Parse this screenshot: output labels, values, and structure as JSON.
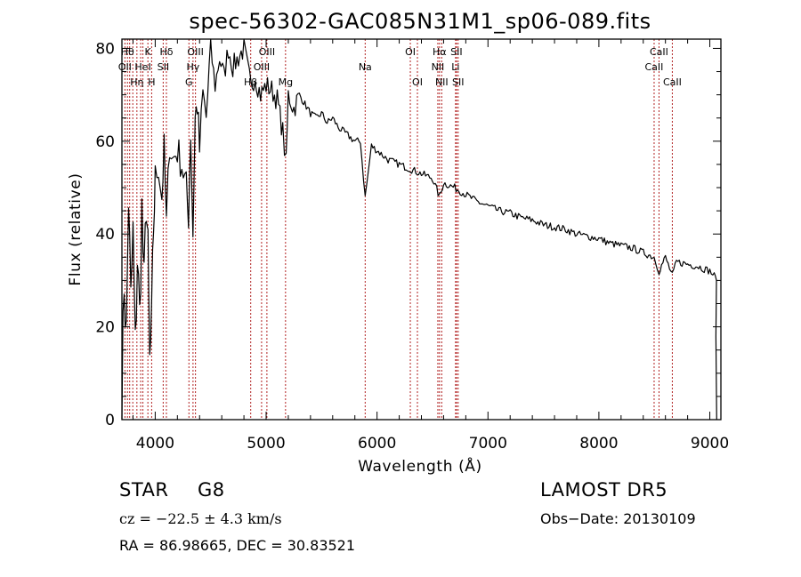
{
  "chart_data": {
    "type": "line",
    "title": "spec-56302-GAC085N31M1_sp06-089.fits",
    "xlabel": "Wavelength (Å)",
    "ylabel": "Flux (relative)",
    "xlim": [
      3700,
      9100
    ],
    "ylim": [
      0,
      82
    ],
    "xticks": [
      4000,
      5000,
      6000,
      7000,
      8000,
      9000
    ],
    "yticks": [
      0,
      20,
      40,
      60,
      80
    ],
    "grid": false,
    "series": [
      {
        "x": [
          3700,
          3720,
          3740,
          3760,
          3780,
          3800,
          3820,
          3840,
          3860,
          3880,
          3900,
          3920,
          3935,
          3950,
          3968,
          3985,
          4000,
          4030,
          4060,
          4080,
          4101,
          4130,
          4160,
          4200,
          4240,
          4280,
          4300,
          4320,
          4340,
          4360,
          4380,
          4400,
          4430,
          4460,
          4500,
          4540,
          4580,
          4620,
          4660,
          4700,
          4750,
          4800,
          4861,
          4900,
          4950,
          5000,
          5050,
          5100,
          5150,
          5180,
          5200,
          5250,
          5300,
          5350,
          5400,
          5450,
          5500,
          5550,
          5600,
          5650,
          5700,
          5750,
          5800,
          5850,
          5893,
          5950,
          6000,
          6100,
          6200,
          6300,
          6400,
          6500,
          6563,
          6600,
          6700,
          6800,
          6900,
          7000,
          7100,
          7200,
          7300,
          7400,
          7500,
          7600,
          7700,
          7800,
          7900,
          8000,
          8100,
          8200,
          8300,
          8400,
          8498,
          8542,
          8600,
          8662,
          8700,
          8800,
          8900,
          9000,
          9040,
          9060
        ],
        "y": [
          5,
          30,
          18,
          48,
          25,
          40,
          15,
          35,
          22,
          45,
          28,
          48,
          35,
          12,
          20,
          42,
          52,
          55,
          48,
          58,
          42,
          60,
          56,
          58,
          55,
          50,
          44,
          62,
          40,
          65,
          68,
          58,
          70,
          65,
          80,
          72,
          78,
          74,
          80,
          76,
          78,
          80,
          72,
          74,
          70,
          72,
          71,
          69,
          62,
          55,
          70,
          67,
          70,
          68,
          66,
          65,
          66,
          64,
          65,
          63,
          62,
          61,
          60,
          60,
          48,
          59,
          58,
          56,
          55,
          54,
          53,
          52,
          48,
          51,
          50,
          48.5,
          47,
          46,
          45,
          44.5,
          43.5,
          43,
          42,
          41.5,
          41,
          40,
          39.5,
          39,
          38,
          37.5,
          37,
          36,
          35,
          32,
          35,
          31,
          34,
          33.5,
          33,
          32,
          31,
          30
        ]
      }
    ],
    "lines": [
      {
        "x": 3727,
        "label": "OII",
        "row": 2
      },
      {
        "x": 3750,
        "label": "Hθ",
        "row": 1
      },
      {
        "x": 3770,
        "label": "",
        "row": 0
      },
      {
        "x": 3798,
        "label": "",
        "row": 0
      },
      {
        "x": 3835,
        "label": "Hη",
        "row": 3
      },
      {
        "x": 3869,
        "label": "",
        "row": 0
      },
      {
        "x": 3889,
        "label": "HeI",
        "row": 2
      },
      {
        "x": 3934,
        "label": "K",
        "row": 1
      },
      {
        "x": 3968,
        "label": "H",
        "row": 3
      },
      {
        "x": 4072,
        "label": "SII",
        "row": 2
      },
      {
        "x": 4101,
        "label": "Hδ",
        "row": 1
      },
      {
        "x": 4304,
        "label": "G",
        "row": 3
      },
      {
        "x": 4341,
        "label": "Hγ",
        "row": 2
      },
      {
        "x": 4363,
        "label": "OIII",
        "row": 1
      },
      {
        "x": 4861,
        "label": "Hβ",
        "row": 3
      },
      {
        "x": 4959,
        "label": "OIII",
        "row": 2
      },
      {
        "x": 5007,
        "label": "OIII",
        "row": 1
      },
      {
        "x": 5175,
        "label": "Mg",
        "row": 3
      },
      {
        "x": 5893,
        "label": "Na",
        "row": 2
      },
      {
        "x": 6300,
        "label": "OI",
        "row": 1
      },
      {
        "x": 6364,
        "label": "OI",
        "row": 3
      },
      {
        "x": 6548,
        "label": "NII",
        "row": 2
      },
      {
        "x": 6563,
        "label": "Hα",
        "row": 1
      },
      {
        "x": 6583,
        "label": "NII",
        "row": 3
      },
      {
        "x": 6708,
        "label": "Li",
        "row": 2
      },
      {
        "x": 6716,
        "label": "SII",
        "row": 1
      },
      {
        "x": 6731,
        "label": "SII",
        "row": 3
      },
      {
        "x": 8498,
        "label": "CaII",
        "row": 2
      },
      {
        "x": 8542,
        "label": "CaII",
        "row": 1
      },
      {
        "x": 8662,
        "label": "CaII",
        "row": 3
      }
    ]
  },
  "info": {
    "class": "STAR",
    "subclass": "G8",
    "survey": "LAMOST DR5",
    "cz": "cz = −22.5 ± 4.3 km/s",
    "obs_date": "Obs−Date: 20130109",
    "coords": "RA =  86.98665, DEC =  30.83521"
  }
}
